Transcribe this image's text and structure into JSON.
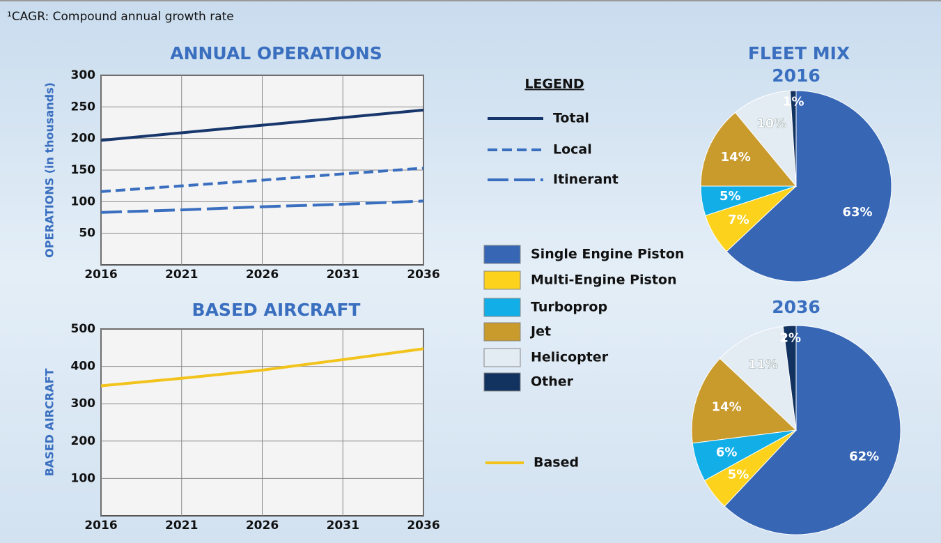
{
  "footnote": "¹CAGR: Compound annual growth rate",
  "legend_title": "LEGEND",
  "chart_data": [
    {
      "type": "line",
      "title": "ANNUAL OPERATIONS",
      "y_label": "OPERATIONS (in thousands)",
      "x": [
        2016,
        2021,
        2026,
        2031,
        2036
      ],
      "xlim": [
        2016,
        2036
      ],
      "xticks": [
        2016,
        2021,
        2026,
        2031,
        2036
      ],
      "ylim": [
        0,
        300
      ],
      "yticks": [
        50,
        100,
        150,
        200,
        250,
        300
      ],
      "grid": true,
      "series": [
        {
          "name": "Total",
          "color": "#17366b",
          "style": "solid",
          "values": [
            197,
            209,
            221,
            233,
            245
          ]
        },
        {
          "name": "Local",
          "color": "#3a6fc0",
          "style": "dashed",
          "values": [
            116,
            125,
            134,
            144,
            153
          ]
        },
        {
          "name": "Itinerant",
          "color": "#3a6fc0",
          "style": "long-dashed",
          "values": [
            83,
            87,
            92,
            96,
            101
          ]
        }
      ]
    },
    {
      "type": "line",
      "title": "BASED AIRCRAFT",
      "y_label": "BASED AIRCRAFT",
      "x": [
        2016,
        2021,
        2026,
        2031,
        2036
      ],
      "xlim": [
        2016,
        2036
      ],
      "xticks": [
        2016,
        2021,
        2026,
        2031,
        2036
      ],
      "ylim": [
        0,
        500
      ],
      "yticks": [
        100,
        200,
        300,
        400,
        500
      ],
      "grid": true,
      "series": [
        {
          "name": "Based",
          "color": "#f2c31a",
          "style": "solid",
          "values": [
            348,
            368,
            390,
            418,
            447
          ]
        }
      ]
    },
    {
      "type": "pie",
      "title": "FLEET MIX",
      "subtitle": "2016",
      "categories": [
        "Single Engine Piston",
        "Multi-Engine Piston",
        "Turboprop",
        "Jet",
        "Helicopter",
        "Other"
      ],
      "colors": [
        "#3766b5",
        "#fcd21c",
        "#12aee8",
        "#c99a2c",
        "#e3ebf3",
        "#12325f"
      ],
      "values": [
        63,
        7,
        5,
        14,
        10,
        1
      ],
      "value_labels": [
        "63%",
        "7%",
        "5%",
        "14%",
        "10%",
        "1%"
      ]
    },
    {
      "type": "pie",
      "subtitle": "2036",
      "values": [
        62,
        5,
        6,
        14,
        11,
        2
      ],
      "value_labels": [
        "62%",
        "5%",
        "6%",
        "14%",
        "11%",
        "2%"
      ]
    }
  ]
}
